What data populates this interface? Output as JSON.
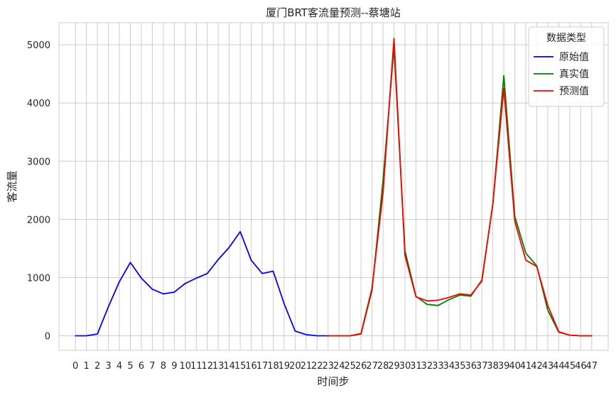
{
  "chart_data": {
    "type": "line",
    "title": "厦门BRT客流量预测--蔡塘站",
    "xlabel": "时间步",
    "ylabel": "客流量",
    "xlim": [
      -1.5,
      48.5
    ],
    "ylim": [
      -250,
      5380
    ],
    "yticks": [
      0,
      1000,
      2000,
      3000,
      4000,
      5000
    ],
    "xticks": [
      0,
      1,
      2,
      3,
      4,
      5,
      6,
      7,
      8,
      9,
      10,
      11,
      12,
      13,
      14,
      15,
      16,
      17,
      18,
      19,
      20,
      21,
      22,
      23,
      24,
      25,
      26,
      27,
      28,
      29,
      30,
      31,
      32,
      33,
      34,
      35,
      36,
      37,
      38,
      39,
      40,
      41,
      42,
      43,
      44,
      45,
      46,
      47
    ],
    "grid": true,
    "legend": {
      "title": "数据类型",
      "placement": "top-right"
    },
    "series": [
      {
        "name": "原始值",
        "color": "#0000ff",
        "x": [
          0,
          1,
          2,
          3,
          4,
          5,
          6,
          7,
          8,
          9,
          10,
          11,
          12,
          13,
          14,
          15,
          16,
          17,
          18,
          19,
          20,
          21,
          22,
          23
        ],
        "y": [
          0,
          0,
          30,
          500,
          930,
          1260,
          990,
          800,
          720,
          750,
          900,
          990,
          1070,
          1310,
          1520,
          1790,
          1300,
          1070,
          1110,
          550,
          80,
          20,
          0,
          0
        ]
      },
      {
        "name": "真实值",
        "color": "#008000",
        "x": [
          23,
          24,
          25,
          26,
          27,
          28,
          29,
          30,
          31,
          32,
          33,
          34,
          35,
          36,
          37,
          38,
          39,
          40,
          41,
          42,
          43,
          44,
          45,
          46,
          47
        ],
        "y": [
          0,
          0,
          0,
          30,
          780,
          2660,
          4960,
          1460,
          680,
          540,
          520,
          620,
          700,
          680,
          960,
          2260,
          4470,
          2050,
          1420,
          1200,
          440,
          60,
          10,
          0,
          0
        ]
      },
      {
        "name": "预测值",
        "color": "#ff0000",
        "x": [
          23,
          24,
          25,
          26,
          27,
          28,
          29,
          30,
          31,
          32,
          33,
          34,
          35,
          36,
          37,
          38,
          39,
          40,
          41,
          42,
          43,
          44,
          45,
          46,
          47
        ],
        "y": [
          0,
          0,
          0,
          40,
          820,
          2450,
          5110,
          1380,
          670,
          600,
          610,
          660,
          720,
          700,
          940,
          2270,
          4250,
          1970,
          1300,
          1190,
          520,
          70,
          10,
          0,
          0
        ]
      }
    ]
  }
}
